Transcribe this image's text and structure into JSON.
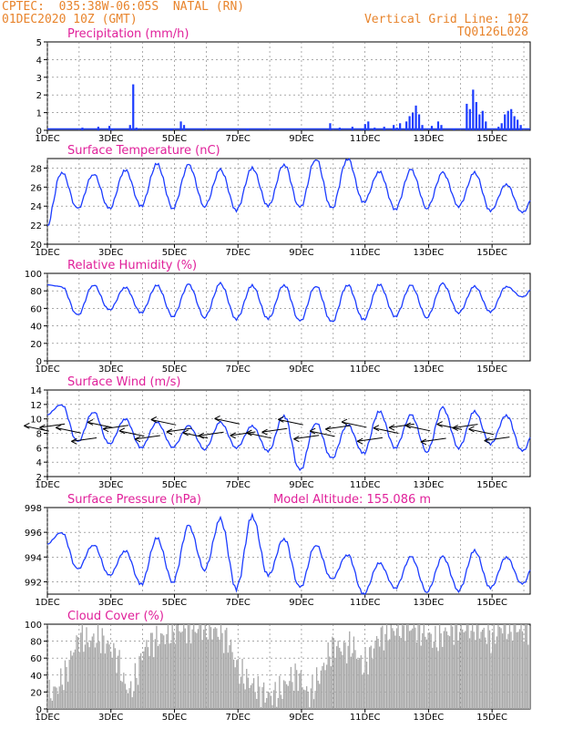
{
  "header": {
    "line1": "CPTEC:  035:38W-06:05S  NATAL (RN)",
    "line2": "01DEC2020 10Z (GMT)",
    "grid_note": "Vertical Grid Line: 10Z",
    "run_id": "TQ0126L028"
  },
  "x_labels": [
    "1DEC",
    "3DEC",
    "5DEC",
    "7DEC",
    "9DEC",
    "11DEC",
    "13DEC",
    "15DEC"
  ],
  "chart_data": [
    {
      "id": "precip",
      "type": "bar",
      "title": "Precipitation (mm/h)",
      "color": "#1c3cff",
      "x_days": [
        15
      ],
      "ylim": [
        0,
        5
      ],
      "yticks": [
        0,
        1,
        2,
        3,
        4,
        5
      ],
      "points": [
        [
          2.1,
          0.15
        ],
        [
          2.6,
          0.2
        ],
        [
          2.95,
          0.25
        ],
        [
          3.05,
          0.1
        ],
        [
          3.6,
          0.3
        ],
        [
          3.7,
          2.6
        ],
        [
          3.8,
          0.15
        ],
        [
          4.9,
          0.1
        ],
        [
          5.2,
          0.5
        ],
        [
          5.3,
          0.3
        ],
        [
          5.9,
          0.1
        ],
        [
          7.3,
          0.05
        ],
        [
          9.9,
          0.4
        ],
        [
          10.2,
          0.15
        ],
        [
          10.6,
          0.2
        ],
        [
          10.9,
          0.1
        ],
        [
          11.0,
          0.35
        ],
        [
          11.1,
          0.5
        ],
        [
          11.3,
          0.15
        ],
        [
          11.6,
          0.2
        ],
        [
          11.9,
          0.3
        ],
        [
          12.0,
          0.15
        ],
        [
          12.1,
          0.4
        ],
        [
          12.3,
          0.5
        ],
        [
          12.4,
          0.8
        ],
        [
          12.5,
          1.0
        ],
        [
          12.6,
          1.4
        ],
        [
          12.7,
          0.9
        ],
        [
          12.8,
          0.3
        ],
        [
          13.1,
          0.25
        ],
        [
          13.3,
          0.5
        ],
        [
          13.4,
          0.3
        ],
        [
          13.8,
          0.1
        ],
        [
          14.2,
          1.5
        ],
        [
          14.3,
          1.2
        ],
        [
          14.4,
          2.3
        ],
        [
          14.5,
          1.6
        ],
        [
          14.6,
          0.9
        ],
        [
          14.7,
          1.1
        ],
        [
          14.8,
          0.5
        ],
        [
          15.2,
          0.2
        ],
        [
          15.3,
          0.4
        ],
        [
          15.4,
          0.9
        ],
        [
          15.5,
          1.1
        ],
        [
          15.6,
          1.2
        ],
        [
          15.7,
          0.8
        ],
        [
          15.8,
          0.6
        ],
        [
          15.9,
          0.3
        ]
      ]
    },
    {
      "id": "temp",
      "type": "line",
      "title": "Surface Temperature (nC)",
      "color": "#1c3cff",
      "ylim": [
        20,
        29
      ],
      "yticks": [
        20,
        22,
        24,
        26,
        28
      ],
      "mins": [
        21.6,
        23.7,
        23.7,
        24.0,
        23.8,
        24.0,
        23.6,
        24.0,
        23.8,
        23.7,
        24.4,
        23.7,
        23.8,
        24.0,
        23.5,
        23.3,
        24.4
      ],
      "maxs": [
        27.6,
        27.4,
        27.8,
        28.4,
        28.3,
        27.8,
        28.0,
        28.4,
        29.0,
        29.0,
        27.6,
        27.8,
        27.5,
        27.5,
        26.3,
        26.0
      ]
    },
    {
      "id": "rh",
      "type": "line",
      "title": "Relative Humidity (%)",
      "color": "#1c3cff",
      "ylim": [
        0,
        100
      ],
      "yticks": [
        0,
        20,
        40,
        60,
        80,
        100
      ],
      "mins": [
        87,
        52,
        58,
        55,
        51,
        50,
        48,
        48,
        45,
        44,
        47,
        51,
        50,
        55,
        56,
        73,
        78
      ],
      "maxs": [
        85,
        87,
        84,
        86,
        87,
        88,
        86,
        87,
        86,
        87,
        87,
        86,
        88,
        85,
        85,
        90
      ]
    },
    {
      "id": "wind",
      "type": "line",
      "title": "Surface Wind (m/s)",
      "color": "#1c3cff",
      "ylim": [
        2,
        14
      ],
      "yticks": [
        2,
        4,
        6,
        8,
        10,
        12,
        14
      ],
      "mins": [
        10.5,
        6.8,
        6.5,
        6.0,
        6.1,
        5.8,
        6.0,
        5.5,
        2.8,
        4.5,
        5.2,
        6.0,
        5.5,
        6.0,
        6.5,
        5.5,
        4.8
      ],
      "maxs": [
        12.0,
        11.0,
        10.0,
        9.5,
        9.0,
        9.5,
        9.0,
        10.5,
        9.5,
        9.2,
        11.0,
        10.5,
        11.5,
        11.0,
        10.5,
        9.5
      ]
    },
    {
      "id": "pres",
      "type": "line",
      "title": "Surface Pressure (hPa)",
      "note": "Model Altitude: 155.086 m",
      "color": "#1c3cff",
      "ylim": [
        991,
        998
      ],
      "yticks": [
        992,
        994,
        996,
        998
      ],
      "mins": [
        995.0,
        993.0,
        992.5,
        991.8,
        992.0,
        993.0,
        991.5,
        992.5,
        991.5,
        992.2,
        991.0,
        991.5,
        991.2,
        991.3,
        991.5,
        991.8,
        993.0
      ],
      "maxs": [
        996.0,
        995.0,
        994.5,
        995.5,
        996.5,
        997.0,
        997.3,
        995.5,
        995.0,
        994.2,
        993.5,
        994.0,
        994.0,
        994.5,
        994.0,
        994.2
      ]
    },
    {
      "id": "cloud",
      "type": "bar",
      "title": "Cloud Cover (%)",
      "color": "#a8a8a8",
      "ylim": [
        0,
        100
      ],
      "yticks": [
        0,
        20,
        40,
        60,
        80,
        100
      ],
      "profile": [
        [
          1.0,
          15
        ],
        [
          1.3,
          25
        ],
        [
          1.6,
          45
        ],
        [
          1.8,
          70
        ],
        [
          2.0,
          85
        ],
        [
          2.3,
          80
        ],
        [
          2.6,
          85
        ],
        [
          2.9,
          75
        ],
        [
          3.2,
          60
        ],
        [
          3.4,
          30
        ],
        [
          3.6,
          20
        ],
        [
          3.8,
          40
        ],
        [
          4.0,
          70
        ],
        [
          4.3,
          80
        ],
        [
          4.6,
          85
        ],
        [
          4.9,
          90
        ],
        [
          5.2,
          95
        ],
        [
          5.5,
          95
        ],
        [
          5.8,
          95
        ],
        [
          6.1,
          95
        ],
        [
          6.4,
          90
        ],
        [
          6.7,
          80
        ],
        [
          6.9,
          55
        ],
        [
          7.1,
          40
        ],
        [
          7.4,
          30
        ],
        [
          7.7,
          20
        ],
        [
          8.0,
          15
        ],
        [
          8.3,
          20
        ],
        [
          8.6,
          35
        ],
        [
          8.9,
          40
        ],
        [
          9.2,
          15
        ],
        [
          9.5,
          35
        ],
        [
          9.8,
          60
        ],
        [
          10.0,
          75
        ],
        [
          10.3,
          70
        ],
        [
          10.6,
          75
        ],
        [
          10.9,
          50
        ],
        [
          11.1,
          60
        ],
        [
          11.4,
          85
        ],
        [
          11.7,
          90
        ],
        [
          12.0,
          95
        ],
        [
          12.3,
          98
        ],
        [
          12.6,
          95
        ],
        [
          12.9,
          90
        ],
        [
          13.2,
          80
        ],
        [
          13.5,
          90
        ],
        [
          13.8,
          95
        ],
        [
          14.1,
          95
        ],
        [
          14.4,
          98
        ],
        [
          14.7,
          90
        ],
        [
          15.0,
          85
        ],
        [
          15.3,
          98
        ],
        [
          15.6,
          95
        ],
        [
          16.0,
          95
        ]
      ]
    }
  ]
}
